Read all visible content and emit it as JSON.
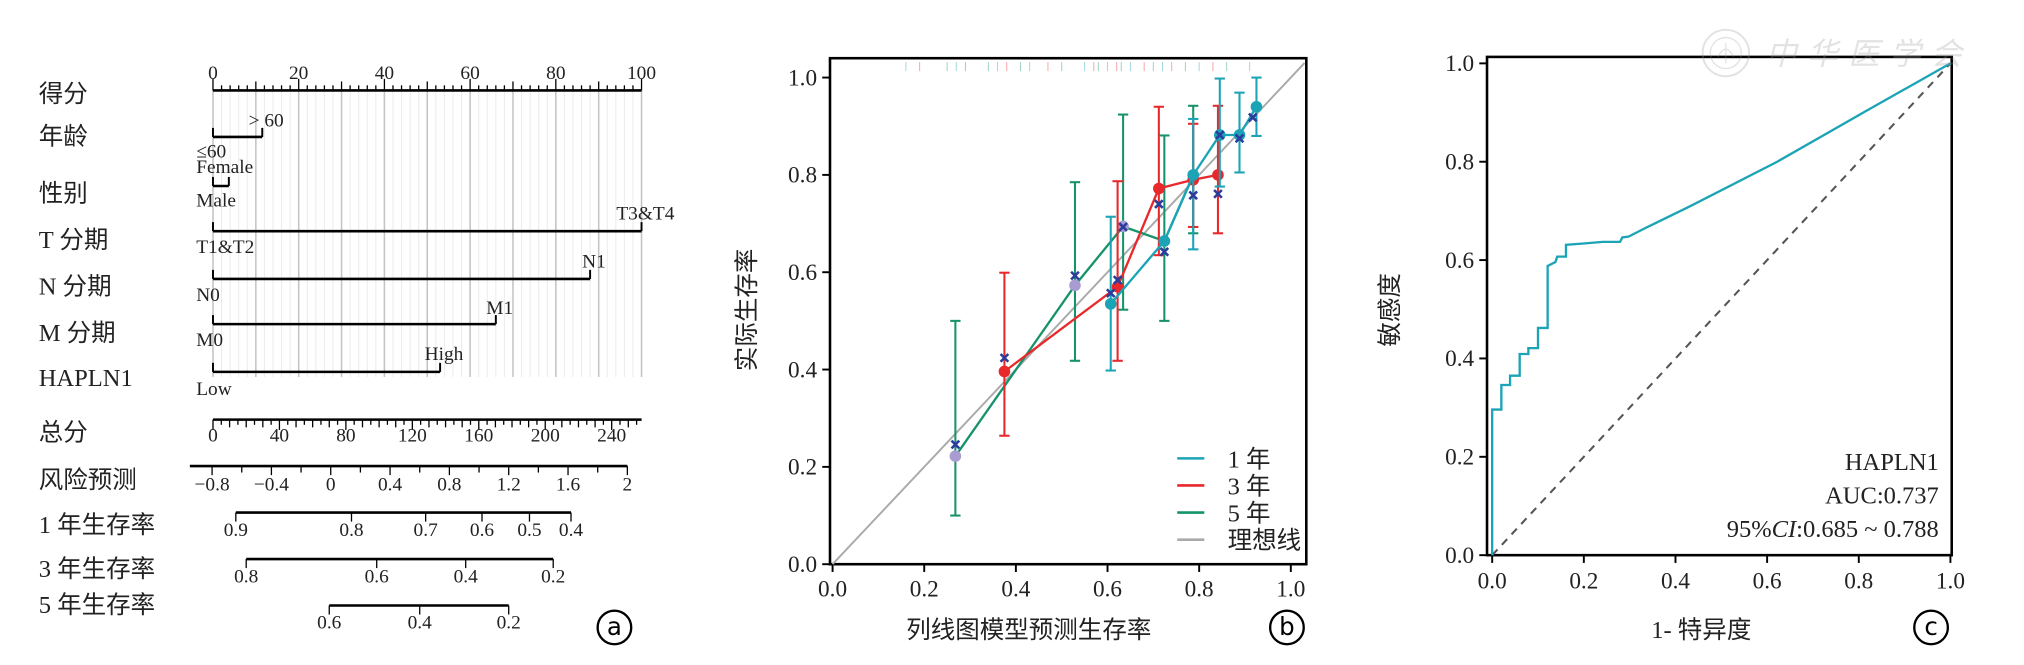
{
  "colors": {
    "one_year": "#1ba3b6",
    "three_year": "#e8282b",
    "five_year": "#17936b",
    "five_year_point": "#a99cd0",
    "corrected_marker": "#2b3c9c",
    "ideal": "#aaaaaa",
    "roc": "#1ba3b6",
    "diagonal": "#555555"
  },
  "watermark": {
    "text": "中华医学会",
    "icon": "seal-icon"
  },
  "chart_data": [
    {
      "type": "nomogram",
      "panel_label": "a",
      "points_axis": {
        "label": "得分",
        "range": [
          0,
          100
        ],
        "ticks": [
          0,
          20,
          40,
          60,
          80,
          100
        ],
        "tick_labels": [
          "0",
          "20",
          "40",
          "60",
          "80",
          "100"
        ]
      },
      "variables": [
        {
          "label": "年龄",
          "levels": [
            {
              "label": "≤60",
              "points": 0
            },
            {
              "label": "> 60",
              "points": 11.5
            }
          ]
        },
        {
          "label": "性别",
          "levels": [
            {
              "label": "Male",
              "points": 0
            },
            {
              "label": "Female",
              "points": 3.7
            }
          ]
        },
        {
          "label": "T 分期",
          "levels": [
            {
              "label": "T1&T2",
              "points": 0
            },
            {
              "label": "T3&T4",
              "points": 100
            }
          ]
        },
        {
          "label": "N 分期",
          "levels": [
            {
              "label": "N0",
              "points": 0
            },
            {
              "label": "N1",
              "points": 88
            }
          ]
        },
        {
          "label": "M 分期",
          "levels": [
            {
              "label": "M0",
              "points": 0
            },
            {
              "label": "M1",
              "points": 66
            }
          ]
        },
        {
          "label": "HAPLN1",
          "levels": [
            {
              "label": "Low",
              "points": 0
            },
            {
              "label": "High",
              "points": 53
            }
          ]
        }
      ],
      "total_points_axis": {
        "label": "总分",
        "range": [
          0,
          258
        ],
        "ticks": [
          0,
          40,
          80,
          120,
          160,
          200,
          240
        ],
        "tick_labels": [
          "0",
          "40",
          "80",
          "120",
          "160",
          "200",
          "240"
        ]
      },
      "risk_axis": {
        "label": "风险预测",
        "range": [
          -0.95,
          2.0
        ],
        "ticks": [
          -0.8,
          -0.4,
          0,
          0.4,
          0.8,
          1.2,
          1.6,
          2
        ],
        "tick_labels": [
          "−0.8",
          "−0.4",
          "0",
          "0.4",
          "0.8",
          "1.2",
          "1.6",
          "2"
        ]
      },
      "survival_axes": [
        {
          "label": "1 年生存率",
          "tick_labels": [
            "0.9",
            "0.8",
            "0.7",
            "0.6",
            "0.5",
            "0.4"
          ],
          "risk_at_tick": [
            -0.64,
            0.14,
            0.64,
            1.02,
            1.34,
            1.62
          ]
        },
        {
          "label": "3 年生存率",
          "tick_labels": [
            "0.8",
            "0.6",
            "0.4",
            "0.2"
          ],
          "risk_at_tick": [
            -0.57,
            0.31,
            0.91,
            1.5
          ]
        },
        {
          "label": "5 年生存率",
          "tick_labels": [
            "0.6",
            "0.4",
            "0.2"
          ],
          "risk_at_tick": [
            -0.01,
            0.6,
            1.2
          ]
        }
      ]
    },
    {
      "type": "line",
      "subtype": "calibration",
      "panel_label": "b",
      "xlabel": "列线图模型预测生存率",
      "ylabel": "实际生存率",
      "xlim": [
        0,
        1.03
      ],
      "ylim": [
        0,
        1.03
      ],
      "xticks": [
        "0.0",
        "0.2",
        "0.4",
        "0.6",
        "0.8",
        "1.0"
      ],
      "yticks": [
        "0.0",
        "0.2",
        "0.4",
        "0.6",
        "0.8",
        "1.0"
      ],
      "legend_position": "bottom-right",
      "series": [
        {
          "name": "1 年",
          "x": [
            0.607,
            0.724,
            0.787,
            0.845,
            0.888,
            0.925
          ],
          "y": [
            0.535,
            0.664,
            0.8,
            0.882,
            0.882,
            0.94
          ],
          "err_low": [
            0.398,
            null,
            0.647,
            0.776,
            0.805,
            0.88
          ],
          "err_high": [
            0.714,
            null,
            0.915,
            0.998,
            0.969,
            1.0
          ]
        },
        {
          "name": "3 年",
          "x": [
            0.375,
            0.622,
            0.712,
            0.787,
            0.841
          ],
          "y": [
            0.396,
            0.57,
            0.772,
            0.79,
            0.8
          ],
          "err_low": [
            0.264,
            0.418,
            0.635,
            0.693,
            0.68
          ],
          "err_high": [
            0.599,
            0.787,
            0.94,
            0.905,
            0.942
          ]
        },
        {
          "name": "5 年",
          "x": [
            0.268,
            0.529,
            0.634,
            0.724,
            0.787
          ],
          "y": [
            0.222,
            0.573,
            0.694,
            0.664,
            0.799
          ],
          "err_low": [
            0.1,
            0.418,
            0.523,
            0.5,
            0.68
          ],
          "err_high": [
            0.5,
            0.785,
            0.924,
            0.881,
            0.942
          ]
        },
        {
          "name": "理想线",
          "x": [
            0,
            1.03
          ],
          "y": [
            0,
            1.03
          ]
        }
      ],
      "corrected_points": {
        "x": [
          0.268,
          0.375,
          0.529,
          0.607,
          0.622,
          0.634,
          0.712,
          0.724,
          0.787,
          0.841,
          0.845,
          0.888,
          0.917
        ],
        "y": [
          0.246,
          0.424,
          0.593,
          0.557,
          0.584,
          0.693,
          0.74,
          0.642,
          0.758,
          0.761,
          0.882,
          0.875,
          0.918
        ]
      }
    },
    {
      "type": "line",
      "subtype": "roc",
      "panel_label": "c",
      "xlabel": "1- 特异度",
      "ylabel": "敏感度",
      "xlim": [
        0,
        1
      ],
      "ylim": [
        0,
        1
      ],
      "xticks": [
        "0.0",
        "0.2",
        "0.4",
        "0.6",
        "0.8",
        "1.0"
      ],
      "yticks": [
        "0.0",
        "0.2",
        "0.4",
        "0.6",
        "0.8",
        "1.0"
      ],
      "annotation": {
        "name": "HAPLN1",
        "auc": "AUC:0.737",
        "ci_prefix": "95%",
        "ci_italic": "CI",
        "ci_value": ":0.685 ~ 0.788"
      },
      "series": [
        {
          "name": "HAPLN1",
          "x": [
            0,
            0,
            0.02,
            0.02,
            0.039,
            0.039,
            0.06,
            0.06,
            0.079,
            0.079,
            0.1,
            0.1,
            0.121,
            0.121,
            0.138,
            0.142,
            0.161,
            0.161,
            0.203,
            0.241,
            0.279,
            0.284,
            0.298,
            0.336,
            0.431,
            0.622,
            0.812,
            1.0
          ],
          "y": [
            0,
            0.296,
            0.296,
            0.346,
            0.346,
            0.365,
            0.365,
            0.409,
            0.409,
            0.421,
            0.421,
            0.462,
            0.462,
            0.588,
            0.596,
            0.607,
            0.607,
            0.631,
            0.634,
            0.637,
            0.637,
            0.646,
            0.648,
            0.666,
            0.709,
            0.8,
            0.901,
            1.0
          ]
        },
        {
          "name": "reference",
          "x": [
            0,
            1
          ],
          "y": [
            0,
            1
          ]
        }
      ]
    }
  ]
}
